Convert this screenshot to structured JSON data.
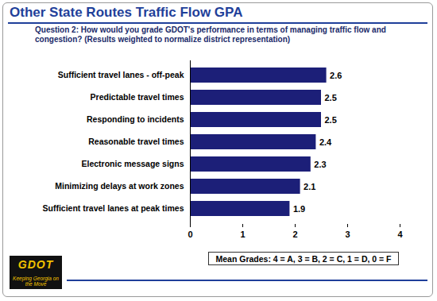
{
  "chart_data": {
    "type": "bar",
    "title": "Other State Routes Traffic Flow GPA",
    "subtitle": "Question 2:  How would you grade GDOT's performance in terms of managing traffic flow and congestion? (Results weighted to normalize district representation)",
    "categories": [
      "Sufficient travel lanes - off-peak",
      "Predictable travel times",
      "Responding to incidents",
      "Reasonable travel times",
      "Electronic message signs",
      "Minimizing delays at work zones",
      "Sufficient travel lanes at peak times"
    ],
    "values": [
      2.6,
      2.5,
      2.5,
      2.4,
      2.3,
      2.1,
      1.9
    ],
    "color": "#1c1f78",
    "orientation": "horizontal",
    "data_labels": true,
    "xlim": [
      0,
      4
    ],
    "xticks": [
      0,
      1,
      2,
      3,
      4
    ],
    "annotations": [
      "Mean Grades: 4 = A, 3 = B, 2 = C, 1 = D, 0 = F",
      "GDOT",
      "Keeping Georgia on the Move"
    ]
  }
}
